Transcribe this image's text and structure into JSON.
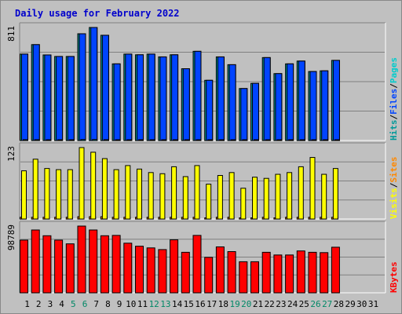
{
  "title": "Daily usage for February 2022",
  "colors": {
    "background": "#c0c0c0",
    "title": "#0000cc",
    "hits": "#009999",
    "files": "#0044ff",
    "pages": "#00cccc",
    "visits": "#ffff00",
    "sites": "#ff8800",
    "kbytes": "#ff0000",
    "weekend_label": "#008866",
    "weekday_label": "#000000"
  },
  "chart_data": [
    {
      "type": "bar",
      "panel": "hits-files-pages",
      "axis_max_label": "811",
      "ylim": [
        0,
        811
      ],
      "legend": [
        {
          "text": "Hits",
          "color": "#009999"
        },
        {
          "text": "/",
          "color": "#000000"
        },
        {
          "text": "Files",
          "color": "#0044ff"
        },
        {
          "text": "/",
          "color": "#000000"
        },
        {
          "text": "Pages",
          "color": "#00cccc"
        }
      ],
      "categories": [
        "1",
        "2",
        "3",
        "4",
        "5",
        "6",
        "7",
        "8",
        "9",
        "10",
        "11",
        "12",
        "13",
        "14",
        "15",
        "16",
        "17",
        "18",
        "19",
        "20",
        "21",
        "22",
        "23",
        "24",
        "25",
        "26",
        "27",
        "28",
        "29",
        "30",
        "31"
      ],
      "series": [
        {
          "name": "Hits",
          "values": [
            620,
            688,
            614,
            603,
            603,
            766,
            811,
            755,
            550,
            620,
            615,
            620,
            600,
            615,
            515,
            640,
            432,
            600,
            544,
            373,
            410,
            595,
            480,
            550,
            570,
            495,
            500,
            575,
            0,
            0,
            0
          ]
        },
        {
          "name": "Files",
          "values": [
            620,
            688,
            614,
            603,
            603,
            766,
            811,
            755,
            550,
            620,
            615,
            620,
            600,
            615,
            515,
            640,
            432,
            600,
            544,
            373,
            410,
            595,
            480,
            550,
            570,
            495,
            500,
            575,
            0,
            0,
            0
          ]
        },
        {
          "name": "Pages",
          "values": [
            6,
            6,
            5,
            5,
            5,
            7,
            7,
            6,
            5,
            5,
            5,
            5,
            5,
            5,
            4,
            5,
            4,
            5,
            5,
            3,
            4,
            5,
            4,
            5,
            5,
            4,
            4,
            5,
            0,
            0,
            0
          ]
        }
      ]
    },
    {
      "type": "bar",
      "panel": "visits-sites",
      "axis_max_label": "123",
      "ylim": [
        0,
        123
      ],
      "legend": [
        {
          "text": "Visits",
          "color": "#ffff00"
        },
        {
          "text": "/",
          "color": "#000000"
        },
        {
          "text": "Sites",
          "color": "#ff8800"
        }
      ],
      "categories": [
        "1",
        "2",
        "3",
        "4",
        "5",
        "6",
        "7",
        "8",
        "9",
        "10",
        "11",
        "12",
        "13",
        "14",
        "15",
        "16",
        "17",
        "18",
        "19",
        "20",
        "21",
        "22",
        "23",
        "24",
        "25",
        "26",
        "27",
        "28",
        "29",
        "30",
        "31"
      ],
      "series": [
        {
          "name": "Visits",
          "values": [
            3,
            3,
            3,
            3,
            3,
            4,
            4,
            4,
            3,
            3,
            3,
            3,
            3,
            3,
            3,
            3,
            2,
            3,
            3,
            2,
            2,
            3,
            2,
            3,
            3,
            3,
            3,
            3,
            0,
            0,
            0
          ]
        },
        {
          "name": "Sites",
          "values": [
            83,
            103,
            87,
            85,
            85,
            123,
            115,
            104,
            85,
            92,
            86,
            80,
            78,
            90,
            73,
            92,
            60,
            75,
            80,
            53,
            72,
            70,
            77,
            80,
            90,
            106,
            77,
            87,
            0,
            0,
            0
          ]
        }
      ]
    },
    {
      "type": "bar",
      "panel": "kbytes",
      "axis_max_label": "98789",
      "ylim": [
        0,
        98789
      ],
      "legend": [
        {
          "text": "KBytes",
          "color": "#ff0000"
        }
      ],
      "categories": [
        "1",
        "2",
        "3",
        "4",
        "5",
        "6",
        "7",
        "8",
        "9",
        "10",
        "11",
        "12",
        "13",
        "14",
        "15",
        "16",
        "17",
        "18",
        "19",
        "20",
        "21",
        "22",
        "23",
        "24",
        "25",
        "26",
        "27",
        "28",
        "29",
        "30",
        "31"
      ],
      "series": [
        {
          "name": "KBytes",
          "values": [
            78000,
            93000,
            84500,
            78000,
            72500,
            98789,
            93000,
            84500,
            85000,
            73500,
            69000,
            66500,
            64000,
            78500,
            60000,
            85000,
            52500,
            68000,
            61000,
            46000,
            46000,
            60000,
            56000,
            56000,
            62000,
            60000,
            59500,
            67500,
            0,
            0,
            0
          ]
        }
      ]
    }
  ],
  "day_label_colors": [
    "#000000",
    "#000000",
    "#000000",
    "#000000",
    "#008866",
    "#008866",
    "#000000",
    "#000000",
    "#000000",
    "#000000",
    "#000000",
    "#008866",
    "#008866",
    "#000000",
    "#000000",
    "#000000",
    "#000000",
    "#000000",
    "#008866",
    "#008866",
    "#000000",
    "#000000",
    "#000000",
    "#000000",
    "#000000",
    "#008866",
    "#008866",
    "#000000",
    "#000000",
    "#000000",
    "#000000"
  ]
}
